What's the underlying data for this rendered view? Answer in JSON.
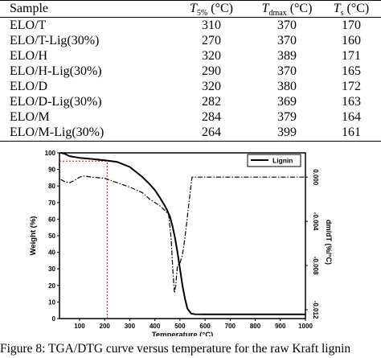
{
  "table": {
    "headers": {
      "sample": "Sample",
      "t5": {
        "var": "T",
        "sub": "5%",
        "unit": " (°C)"
      },
      "tdmax": {
        "var": "T",
        "sub": "dmax",
        "unit": " (°C)"
      },
      "ts": {
        "var": "T",
        "sub": "s",
        "unit": " (°C)"
      }
    },
    "rows": [
      [
        "ELO/T",
        "310",
        "370",
        "170"
      ],
      [
        "ELO/T-Lig(30%)",
        "270",
        "370",
        "160"
      ],
      [
        "ELO/H",
        "320",
        "389",
        "171"
      ],
      [
        "ELO/H-Lig(30%)",
        "290",
        "370",
        "165"
      ],
      [
        "ELO/D",
        "320",
        "380",
        "172"
      ],
      [
        "ELO/D-Lig(30%)",
        "282",
        "369",
        "163"
      ],
      [
        "ELO/M",
        "284",
        "379",
        "164"
      ],
      [
        "ELO/M-Lig(30%)",
        "264",
        "399",
        "161"
      ]
    ]
  },
  "chart_data": {
    "type": "line",
    "xlabel": "Temperature (°C)",
    "ylabel": "Weight (%)",
    "y2label": "dm/dT (%/°C)",
    "xlim": [
      20,
      1000
    ],
    "ylim": [
      0,
      100
    ],
    "y2lim": [
      -0.0128,
      0.0022
    ],
    "xticks": [
      100,
      200,
      300,
      400,
      500,
      600,
      700,
      800,
      900,
      1000
    ],
    "yticks": [
      0,
      10,
      20,
      30,
      40,
      50,
      60,
      70,
      80,
      90,
      100
    ],
    "y2ticks": [
      "0.000",
      "-0.004",
      "-0.008",
      "-0.012"
    ],
    "y2tick_values": [
      0,
      -0.004,
      -0.008,
      -0.012
    ],
    "legend": {
      "position": "top-right",
      "label": "Lignin"
    },
    "series": [
      {
        "name": "Lignin",
        "axis": "left",
        "style": "solid",
        "x": [
          25,
          40,
          60,
          100,
          150,
          200,
          250,
          300,
          350,
          380,
          400,
          420,
          440,
          450,
          460,
          470,
          480,
          490,
          500,
          510,
          520,
          530,
          545,
          560,
          600,
          700,
          800,
          900,
          1000
        ],
        "y": [
          100,
          99.5,
          98,
          97,
          96.3,
          95.5,
          94.5,
          91.5,
          85.5,
          81,
          77.5,
          73,
          68,
          65,
          61.5,
          56,
          49,
          40,
          30,
          20,
          12,
          6,
          3,
          2.6,
          2.5,
          2.5,
          2.5,
          2.5,
          2.5
        ]
      },
      {
        "name": "",
        "axis": "right",
        "style": "dash-dot",
        "x": [
          25,
          40,
          60,
          80,
          100,
          120,
          150,
          200,
          250,
          300,
          350,
          380,
          400,
          420,
          440,
          455,
          465,
          472,
          478,
          483,
          490,
          500,
          510,
          520,
          530,
          540,
          548,
          560,
          600,
          700,
          800,
          900,
          1000
        ],
        "y": [
          -0.0002,
          -0.0004,
          -0.0005,
          -0.0003,
          0.0,
          0.0001,
          0.0,
          -0.0001,
          -0.0005,
          -0.0009,
          -0.0014,
          -0.002,
          -0.0023,
          -0.0026,
          -0.003,
          -0.0034,
          -0.0055,
          -0.0085,
          -0.0105,
          -0.0098,
          -0.008,
          -0.0078,
          -0.007,
          -0.0055,
          -0.0035,
          -0.0015,
          0.0,
          0.0,
          0.0,
          0.0,
          0.0,
          0.0,
          0.0
        ]
      }
    ],
    "annotations": [
      {
        "type": "hline",
        "y": 95,
        "x_to": 210,
        "style": "dotted",
        "color": "#e00000"
      },
      {
        "type": "vline",
        "x": 210,
        "y_to": 95,
        "style": "dotted",
        "color": "#e00000"
      }
    ]
  },
  "caption": "Figure 8: TGA/DTG curve versus temperature for the raw Kraft lignin"
}
